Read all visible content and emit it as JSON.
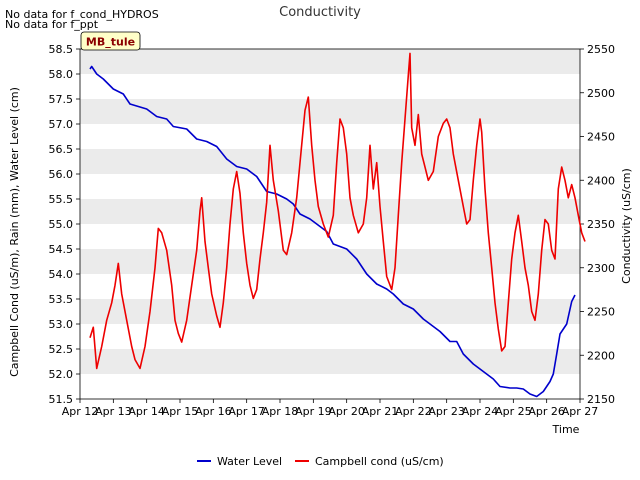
{
  "nodata_lines": [
    "No data for f_cond_HYDROS",
    "No data for f_ppt"
  ],
  "site_tag": "MB_tule",
  "colors": {
    "water_level": "#0000cc",
    "campbell_cond": "#ee0000",
    "band": "#ebebeb",
    "tag_bg": "#ffffc8",
    "tag_text": "#8b0000"
  },
  "chart_data": {
    "type": "line",
    "title": "Conductivity",
    "xlabel": "Time",
    "ylabel_left": "Campbell Cond (uS/m), Rain (mm), Water Level (cm)",
    "ylabel_right": "Conductivity (uS/cm)",
    "x_ticks": [
      "Apr 12",
      "Apr 13",
      "Apr 14",
      "Apr 15",
      "Apr 16",
      "Apr 17",
      "Apr 18",
      "Apr 19",
      "Apr 20",
      "Apr 21",
      "Apr 22",
      "Apr 23",
      "Apr 24",
      "Apr 25",
      "Apr 26",
      "Apr 27"
    ],
    "xlim": [
      0,
      15
    ],
    "ylim_left": [
      51.5,
      58.5
    ],
    "yticks_left": [
      "51.5",
      "52.0",
      "52.5",
      "53.0",
      "53.5",
      "54.0",
      "54.5",
      "55.0",
      "55.5",
      "56.0",
      "56.5",
      "57.0",
      "57.5",
      "58.0",
      "58.5"
    ],
    "ylim_right": [
      2150,
      2550
    ],
    "yticks_right": [
      "2150",
      "2200",
      "2250",
      "2300",
      "2350",
      "2400",
      "2450",
      "2500",
      "2550"
    ],
    "grid": "horizontal bands",
    "legend": "bottom-center",
    "series": [
      {
        "name": "Water Level",
        "axis": "left",
        "points": [
          [
            0.3,
            58.1
          ],
          [
            0.35,
            58.15
          ],
          [
            0.5,
            58.0
          ],
          [
            0.7,
            57.9
          ],
          [
            1.0,
            57.7
          ],
          [
            1.3,
            57.6
          ],
          [
            1.5,
            57.4
          ],
          [
            2.0,
            57.3
          ],
          [
            2.3,
            57.15
          ],
          [
            2.6,
            57.1
          ],
          [
            2.8,
            56.95
          ],
          [
            3.2,
            56.9
          ],
          [
            3.5,
            56.7
          ],
          [
            3.8,
            56.65
          ],
          [
            4.1,
            56.55
          ],
          [
            4.4,
            56.3
          ],
          [
            4.7,
            56.15
          ],
          [
            5.0,
            56.1
          ],
          [
            5.3,
            55.95
          ],
          [
            5.6,
            55.65
          ],
          [
            5.9,
            55.6
          ],
          [
            6.2,
            55.5
          ],
          [
            6.4,
            55.4
          ],
          [
            6.6,
            55.2
          ],
          [
            6.9,
            55.1
          ],
          [
            7.1,
            55.0
          ],
          [
            7.4,
            54.85
          ],
          [
            7.6,
            54.6
          ],
          [
            8.0,
            54.5
          ],
          [
            8.3,
            54.3
          ],
          [
            8.6,
            54.0
          ],
          [
            8.9,
            53.8
          ],
          [
            9.2,
            53.7
          ],
          [
            9.4,
            53.6
          ],
          [
            9.7,
            53.4
          ],
          [
            10.0,
            53.3
          ],
          [
            10.3,
            53.1
          ],
          [
            10.5,
            53.0
          ],
          [
            10.8,
            52.85
          ],
          [
            11.1,
            52.65
          ],
          [
            11.3,
            52.65
          ],
          [
            11.5,
            52.4
          ],
          [
            11.8,
            52.2
          ],
          [
            12.1,
            52.05
          ],
          [
            12.4,
            51.9
          ],
          [
            12.6,
            51.75
          ],
          [
            12.9,
            51.72
          ],
          [
            13.1,
            51.72
          ],
          [
            13.3,
            51.7
          ],
          [
            13.5,
            51.6
          ],
          [
            13.7,
            51.55
          ],
          [
            13.9,
            51.65
          ],
          [
            14.1,
            51.85
          ],
          [
            14.2,
            52.0
          ],
          [
            14.3,
            52.4
          ],
          [
            14.4,
            52.8
          ],
          [
            14.6,
            53.0
          ],
          [
            14.75,
            53.45
          ],
          [
            14.85,
            53.58
          ]
        ]
      },
      {
        "name": "Campbell cond (uS/cm)",
        "axis": "right",
        "points": [
          [
            0.3,
            2220
          ],
          [
            0.4,
            2232
          ],
          [
            0.5,
            2185
          ],
          [
            0.65,
            2210
          ],
          [
            0.8,
            2240
          ],
          [
            0.95,
            2260
          ],
          [
            1.05,
            2280
          ],
          [
            1.15,
            2305
          ],
          [
            1.25,
            2270
          ],
          [
            1.4,
            2240
          ],
          [
            1.55,
            2210
          ],
          [
            1.65,
            2195
          ],
          [
            1.8,
            2185
          ],
          [
            1.95,
            2210
          ],
          [
            2.1,
            2250
          ],
          [
            2.25,
            2300
          ],
          [
            2.35,
            2345
          ],
          [
            2.45,
            2340
          ],
          [
            2.6,
            2320
          ],
          [
            2.75,
            2280
          ],
          [
            2.85,
            2240
          ],
          [
            2.95,
            2225
          ],
          [
            3.05,
            2215
          ],
          [
            3.2,
            2240
          ],
          [
            3.35,
            2280
          ],
          [
            3.5,
            2320
          ],
          [
            3.6,
            2365
          ],
          [
            3.65,
            2380
          ],
          [
            3.75,
            2330
          ],
          [
            3.85,
            2300
          ],
          [
            3.95,
            2270
          ],
          [
            4.1,
            2245
          ],
          [
            4.2,
            2232
          ],
          [
            4.3,
            2260
          ],
          [
            4.4,
            2300
          ],
          [
            4.5,
            2350
          ],
          [
            4.6,
            2390
          ],
          [
            4.7,
            2410
          ],
          [
            4.8,
            2385
          ],
          [
            4.9,
            2340
          ],
          [
            5.0,
            2305
          ],
          [
            5.1,
            2280
          ],
          [
            5.2,
            2265
          ],
          [
            5.3,
            2275
          ],
          [
            5.4,
            2310
          ],
          [
            5.5,
            2340
          ],
          [
            5.6,
            2375
          ],
          [
            5.7,
            2440
          ],
          [
            5.8,
            2400
          ],
          [
            5.95,
            2365
          ],
          [
            6.1,
            2320
          ],
          [
            6.2,
            2315
          ],
          [
            6.35,
            2340
          ],
          [
            6.5,
            2380
          ],
          [
            6.6,
            2420
          ],
          [
            6.75,
            2480
          ],
          [
            6.85,
            2495
          ],
          [
            6.95,
            2440
          ],
          [
            7.05,
            2400
          ],
          [
            7.15,
            2370
          ],
          [
            7.3,
            2350
          ],
          [
            7.45,
            2335
          ],
          [
            7.6,
            2360
          ],
          [
            7.7,
            2420
          ],
          [
            7.8,
            2470
          ],
          [
            7.9,
            2460
          ],
          [
            8.0,
            2430
          ],
          [
            8.1,
            2380
          ],
          [
            8.2,
            2360
          ],
          [
            8.35,
            2340
          ],
          [
            8.5,
            2350
          ],
          [
            8.6,
            2380
          ],
          [
            8.7,
            2440
          ],
          [
            8.8,
            2390
          ],
          [
            8.9,
            2420
          ],
          [
            9.0,
            2370
          ],
          [
            9.1,
            2330
          ],
          [
            9.2,
            2290
          ],
          [
            9.35,
            2275
          ],
          [
            9.45,
            2300
          ],
          [
            9.55,
            2360
          ],
          [
            9.65,
            2420
          ],
          [
            9.75,
            2470
          ],
          [
            9.85,
            2520
          ],
          [
            9.9,
            2545
          ],
          [
            9.95,
            2460
          ],
          [
            10.05,
            2440
          ],
          [
            10.15,
            2475
          ],
          [
            10.25,
            2430
          ],
          [
            10.35,
            2415
          ],
          [
            10.45,
            2400
          ],
          [
            10.6,
            2410
          ],
          [
            10.75,
            2450
          ],
          [
            10.9,
            2465
          ],
          [
            11.0,
            2470
          ],
          [
            11.1,
            2460
          ],
          [
            11.2,
            2430
          ],
          [
            11.35,
            2400
          ],
          [
            11.5,
            2370
          ],
          [
            11.6,
            2350
          ],
          [
            11.7,
            2355
          ],
          [
            11.8,
            2400
          ],
          [
            11.9,
            2440
          ],
          [
            12.0,
            2470
          ],
          [
            12.05,
            2455
          ],
          [
            12.15,
            2390
          ],
          [
            12.25,
            2340
          ],
          [
            12.35,
            2300
          ],
          [
            12.45,
            2260
          ],
          [
            12.55,
            2230
          ],
          [
            12.65,
            2205
          ],
          [
            12.75,
            2210
          ],
          [
            12.85,
            2260
          ],
          [
            12.95,
            2310
          ],
          [
            13.05,
            2340
          ],
          [
            13.15,
            2360
          ],
          [
            13.25,
            2330
          ],
          [
            13.35,
            2300
          ],
          [
            13.45,
            2280
          ],
          [
            13.55,
            2250
          ],
          [
            13.65,
            2240
          ],
          [
            13.75,
            2270
          ],
          [
            13.85,
            2320
          ],
          [
            13.95,
            2355
          ],
          [
            14.05,
            2350
          ],
          [
            14.15,
            2320
          ],
          [
            14.25,
            2310
          ],
          [
            14.35,
            2390
          ],
          [
            14.45,
            2415
          ],
          [
            14.55,
            2400
          ],
          [
            14.65,
            2380
          ],
          [
            14.75,
            2395
          ],
          [
            14.85,
            2380
          ],
          [
            14.95,
            2360
          ],
          [
            15.05,
            2340
          ],
          [
            15.15,
            2330
          ]
        ]
      }
    ]
  }
}
